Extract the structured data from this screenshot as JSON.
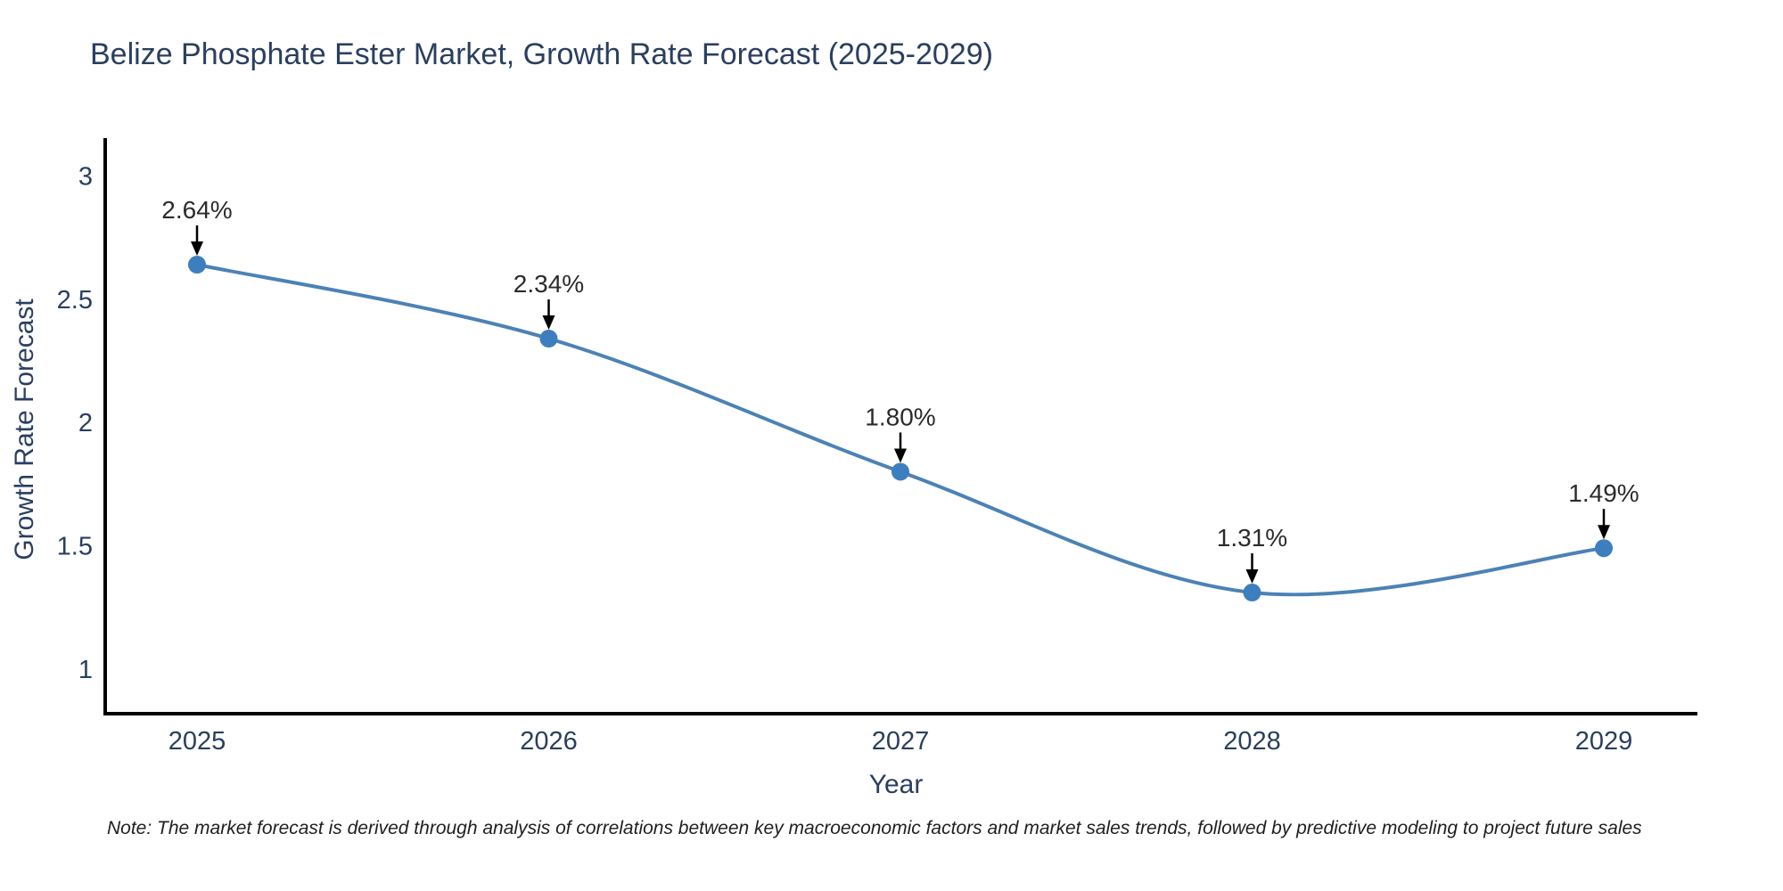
{
  "title": "Belize Phosphate Ester Market, Growth Rate Forecast (2025-2029)",
  "note": "Note: The market forecast is derived through analysis of correlations between key macroeconomic factors and market sales trends, followed by predictive modeling to project future sales",
  "chart_data": {
    "type": "line",
    "title": "Belize Phosphate Ester Market, Growth Rate Forecast (2025-2029)",
    "xlabel": "Year",
    "ylabel": "Growth Rate Forecast",
    "categories": [
      "2025",
      "2026",
      "2027",
      "2028",
      "2029"
    ],
    "x": [
      2025,
      2026,
      2027,
      2028,
      2029
    ],
    "values": [
      2.64,
      2.34,
      1.8,
      1.31,
      1.49
    ],
    "point_labels": [
      "2.64%",
      "2.34%",
      "1.80%",
      "1.31%",
      "1.49%"
    ],
    "yticks": [
      1,
      1.5,
      2,
      2.5,
      3
    ],
    "ytick_labels": [
      "1",
      "1.5",
      "2",
      "2.5",
      "3"
    ],
    "ylim": [
      0.82,
      3.15
    ],
    "xlim": [
      2024.74,
      2029.27
    ],
    "grid": false,
    "legend": "none",
    "line_shape": "spline",
    "colors": {
      "line": "#4c82b4",
      "marker": "#3d7ebf",
      "axis": "#000000",
      "axis_text": "#2a3f5f",
      "annotation_text": "#2b2b2b",
      "arrow": "#000000",
      "background": "#ffffff"
    }
  }
}
